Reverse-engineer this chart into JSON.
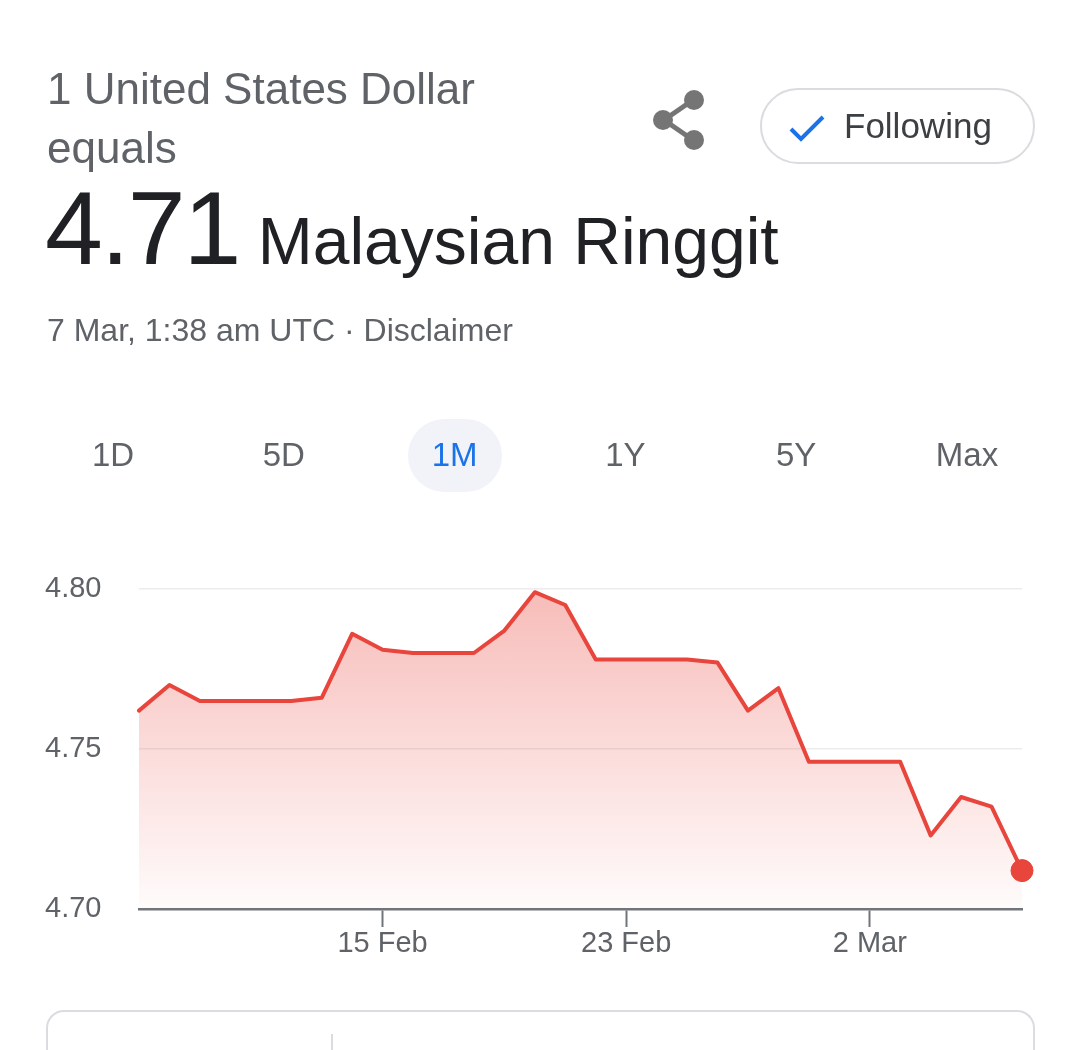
{
  "chart_data": {
    "type": "area",
    "title": "1 United States Dollar equals",
    "subtitle": "4.71 Malaysian Ringgit",
    "annotations": [
      "7 Mar, 1:38 am UTC · Disclaimer",
      "Following",
      "1D",
      "5D",
      "1M",
      "1Y",
      "5Y",
      "Max"
    ],
    "x": [
      "--02-07",
      "--02-08",
      "--02-09",
      "--02-10",
      "--02-11",
      "--02-12",
      "--02-13",
      "--02-14",
      "--02-15",
      "--02-16",
      "--02-17",
      "--02-18",
      "--02-19",
      "--02-20",
      "--02-21",
      "--02-22",
      "--02-23",
      "--02-24",
      "--02-25",
      "--02-26",
      "--02-27",
      "--02-28",
      "--02-29",
      "--03-01",
      "--03-02",
      "--03-03",
      "--03-04",
      "--03-05",
      "--03-06",
      "--03-07"
    ],
    "series": [
      {
        "color": "#e8453c",
        "values": [
          4.762,
          4.77,
          4.765,
          4.765,
          4.765,
          4.765,
          4.766,
          4.786,
          4.781,
          4.78,
          4.78,
          4.78,
          4.787,
          4.799,
          4.795,
          4.778,
          4.778,
          4.778,
          4.778,
          4.777,
          4.762,
          4.769,
          4.746,
          4.746,
          4.746,
          4.746,
          4.723,
          4.735,
          4.732,
          4.712
        ]
      },
      {
        "type": "scatter",
        "color": "#e8453c",
        "marker": "circle",
        "x": [
          "--03-07"
        ],
        "values": [
          4.712
        ]
      }
    ],
    "xlim": [
      "--02-07",
      "--03-07"
    ],
    "xticks": [
      {
        "value": "--02-15",
        "label": "15 Feb"
      },
      {
        "value": "--02-23",
        "label": "23 Feb"
      },
      {
        "value": "--03-02",
        "label": "2 Mar"
      }
    ],
    "ylim": [
      4.7,
      4.8
    ],
    "yticks": [
      {
        "value": 4.8,
        "label": "4.80"
      },
      4.75,
      {
        "value": 4.7,
        "label": "4.70"
      }
    ],
    "grid": "y"
  }
}
